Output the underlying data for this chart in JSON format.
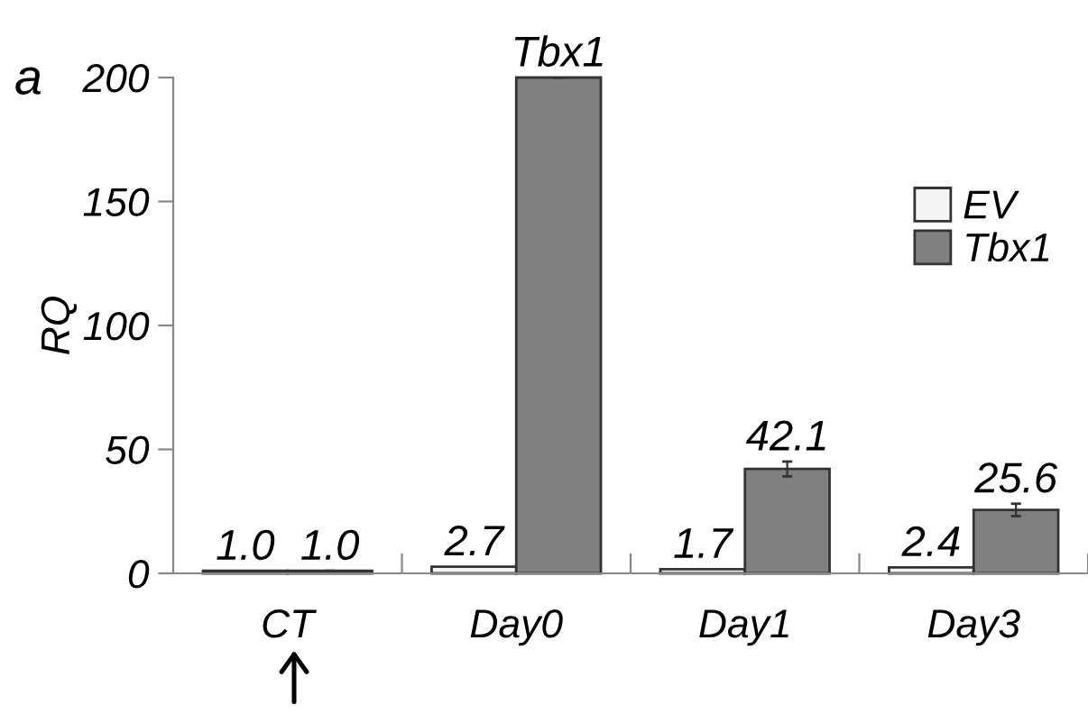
{
  "chart_data": {
    "type": "bar",
    "ylabel": "RQ",
    "categories": [
      "CT",
      "Day0",
      "Day1",
      "Day3"
    ],
    "series": [
      {
        "name": "EV",
        "color": "#f4f4f4",
        "values": [
          1.0,
          2.7,
          1.7,
          2.4
        ],
        "value_labels": [
          "1.0",
          "2.7",
          "1.7",
          "2.4"
        ]
      },
      {
        "name": "Tbx1",
        "color": "#808080",
        "values": [
          1.0,
          200,
          42.1,
          25.6
        ],
        "value_labels": [
          "1.0",
          "Tbx1",
          "42.1",
          "25.6"
        ],
        "errors": [
          null,
          null,
          3,
          2.5
        ]
      }
    ],
    "ylim": [
      0,
      200
    ],
    "yticks": [
      0,
      50,
      100,
      150,
      200
    ],
    "grid": false,
    "legend": "top right",
    "annotations": [
      "a"
    ]
  }
}
